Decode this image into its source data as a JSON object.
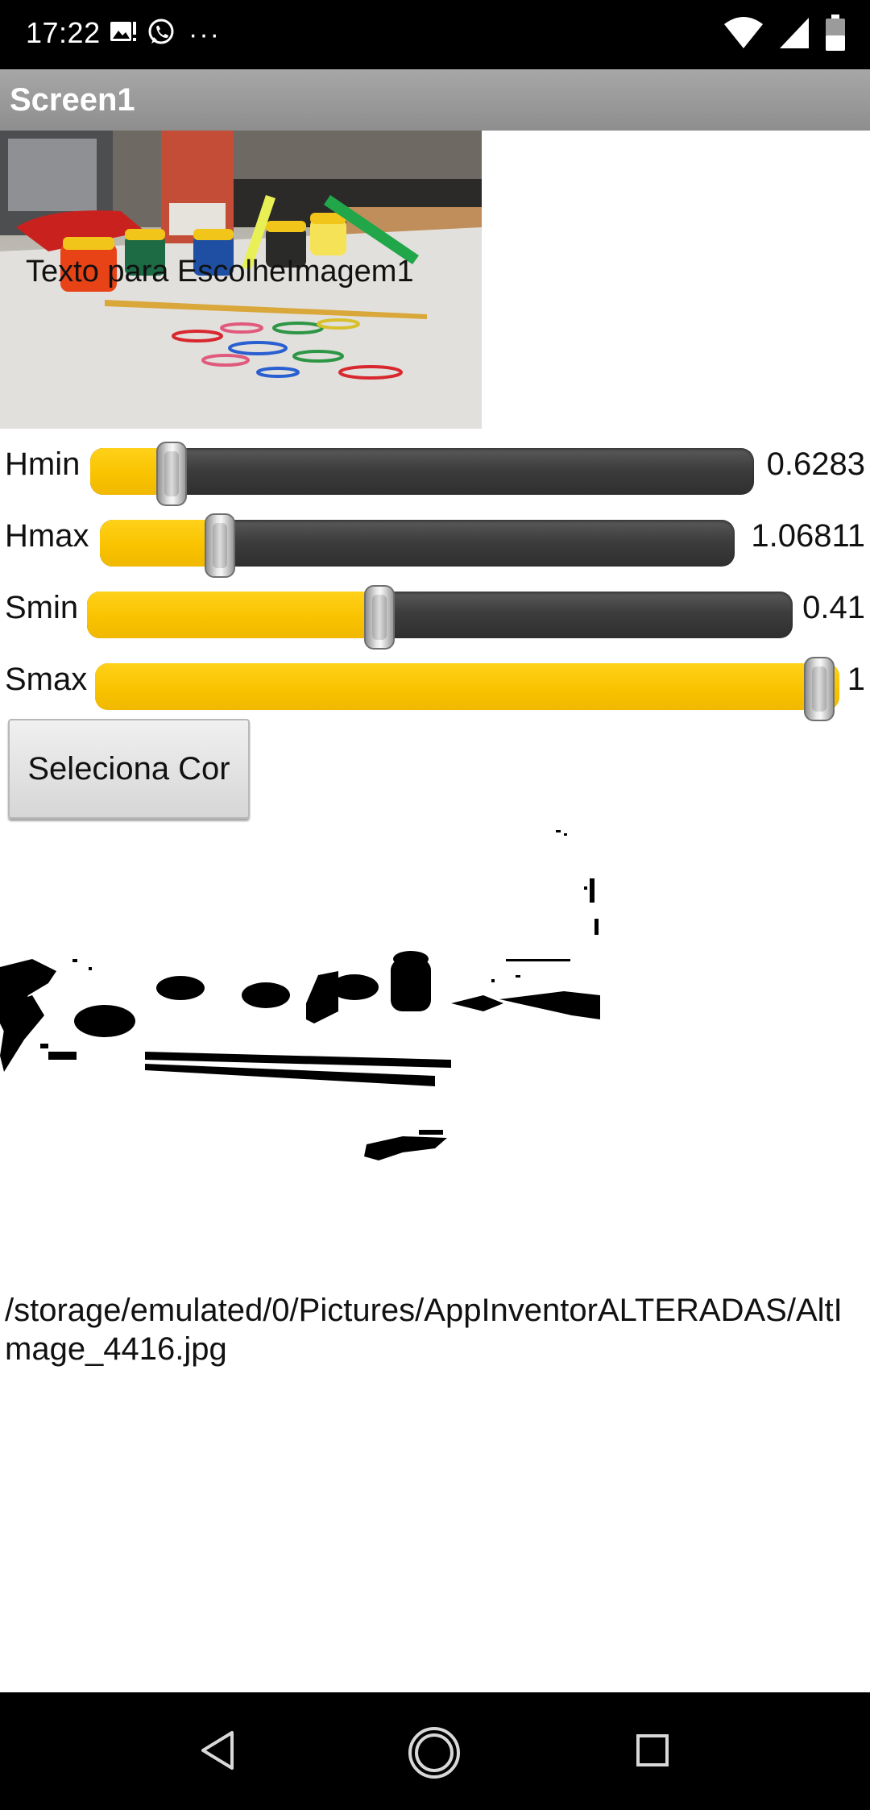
{
  "status_bar": {
    "time": "17:22",
    "icons_left": [
      "gallery-icon",
      "whatsapp-icon",
      "more-dots-icon"
    ],
    "icons_right": [
      "wifi-icon",
      "signal-icon",
      "battery-icon"
    ]
  },
  "app": {
    "title": "Screen1"
  },
  "image_picker": {
    "label": "Texto para EscolheImagem1"
  },
  "sliders": [
    {
      "label": "Hmin",
      "value_text": "0.6283",
      "fill_fraction": 0.12
    },
    {
      "label": "Hmax",
      "value_text": "1.06811",
      "fill_fraction": 0.19
    },
    {
      "label": "Smin",
      "value_text": "0.41",
      "fill_fraction": 0.41
    },
    {
      "label": "Smax",
      "value_text": "1",
      "fill_fraction": 1.0
    }
  ],
  "button": {
    "label": "Seleciona Cor"
  },
  "output": {
    "path": "/storage/emulated/0/Pictures/AppInventorALTERADAS/AltImage_4416.jpg"
  },
  "colors": {
    "accent_yellow": "#f9c300",
    "track_dark": "#3d3d3d",
    "titlebar_gray": "#9a9a9a"
  },
  "nav_bar": {
    "icons": [
      "back-icon",
      "home-icon",
      "recents-icon"
    ]
  }
}
